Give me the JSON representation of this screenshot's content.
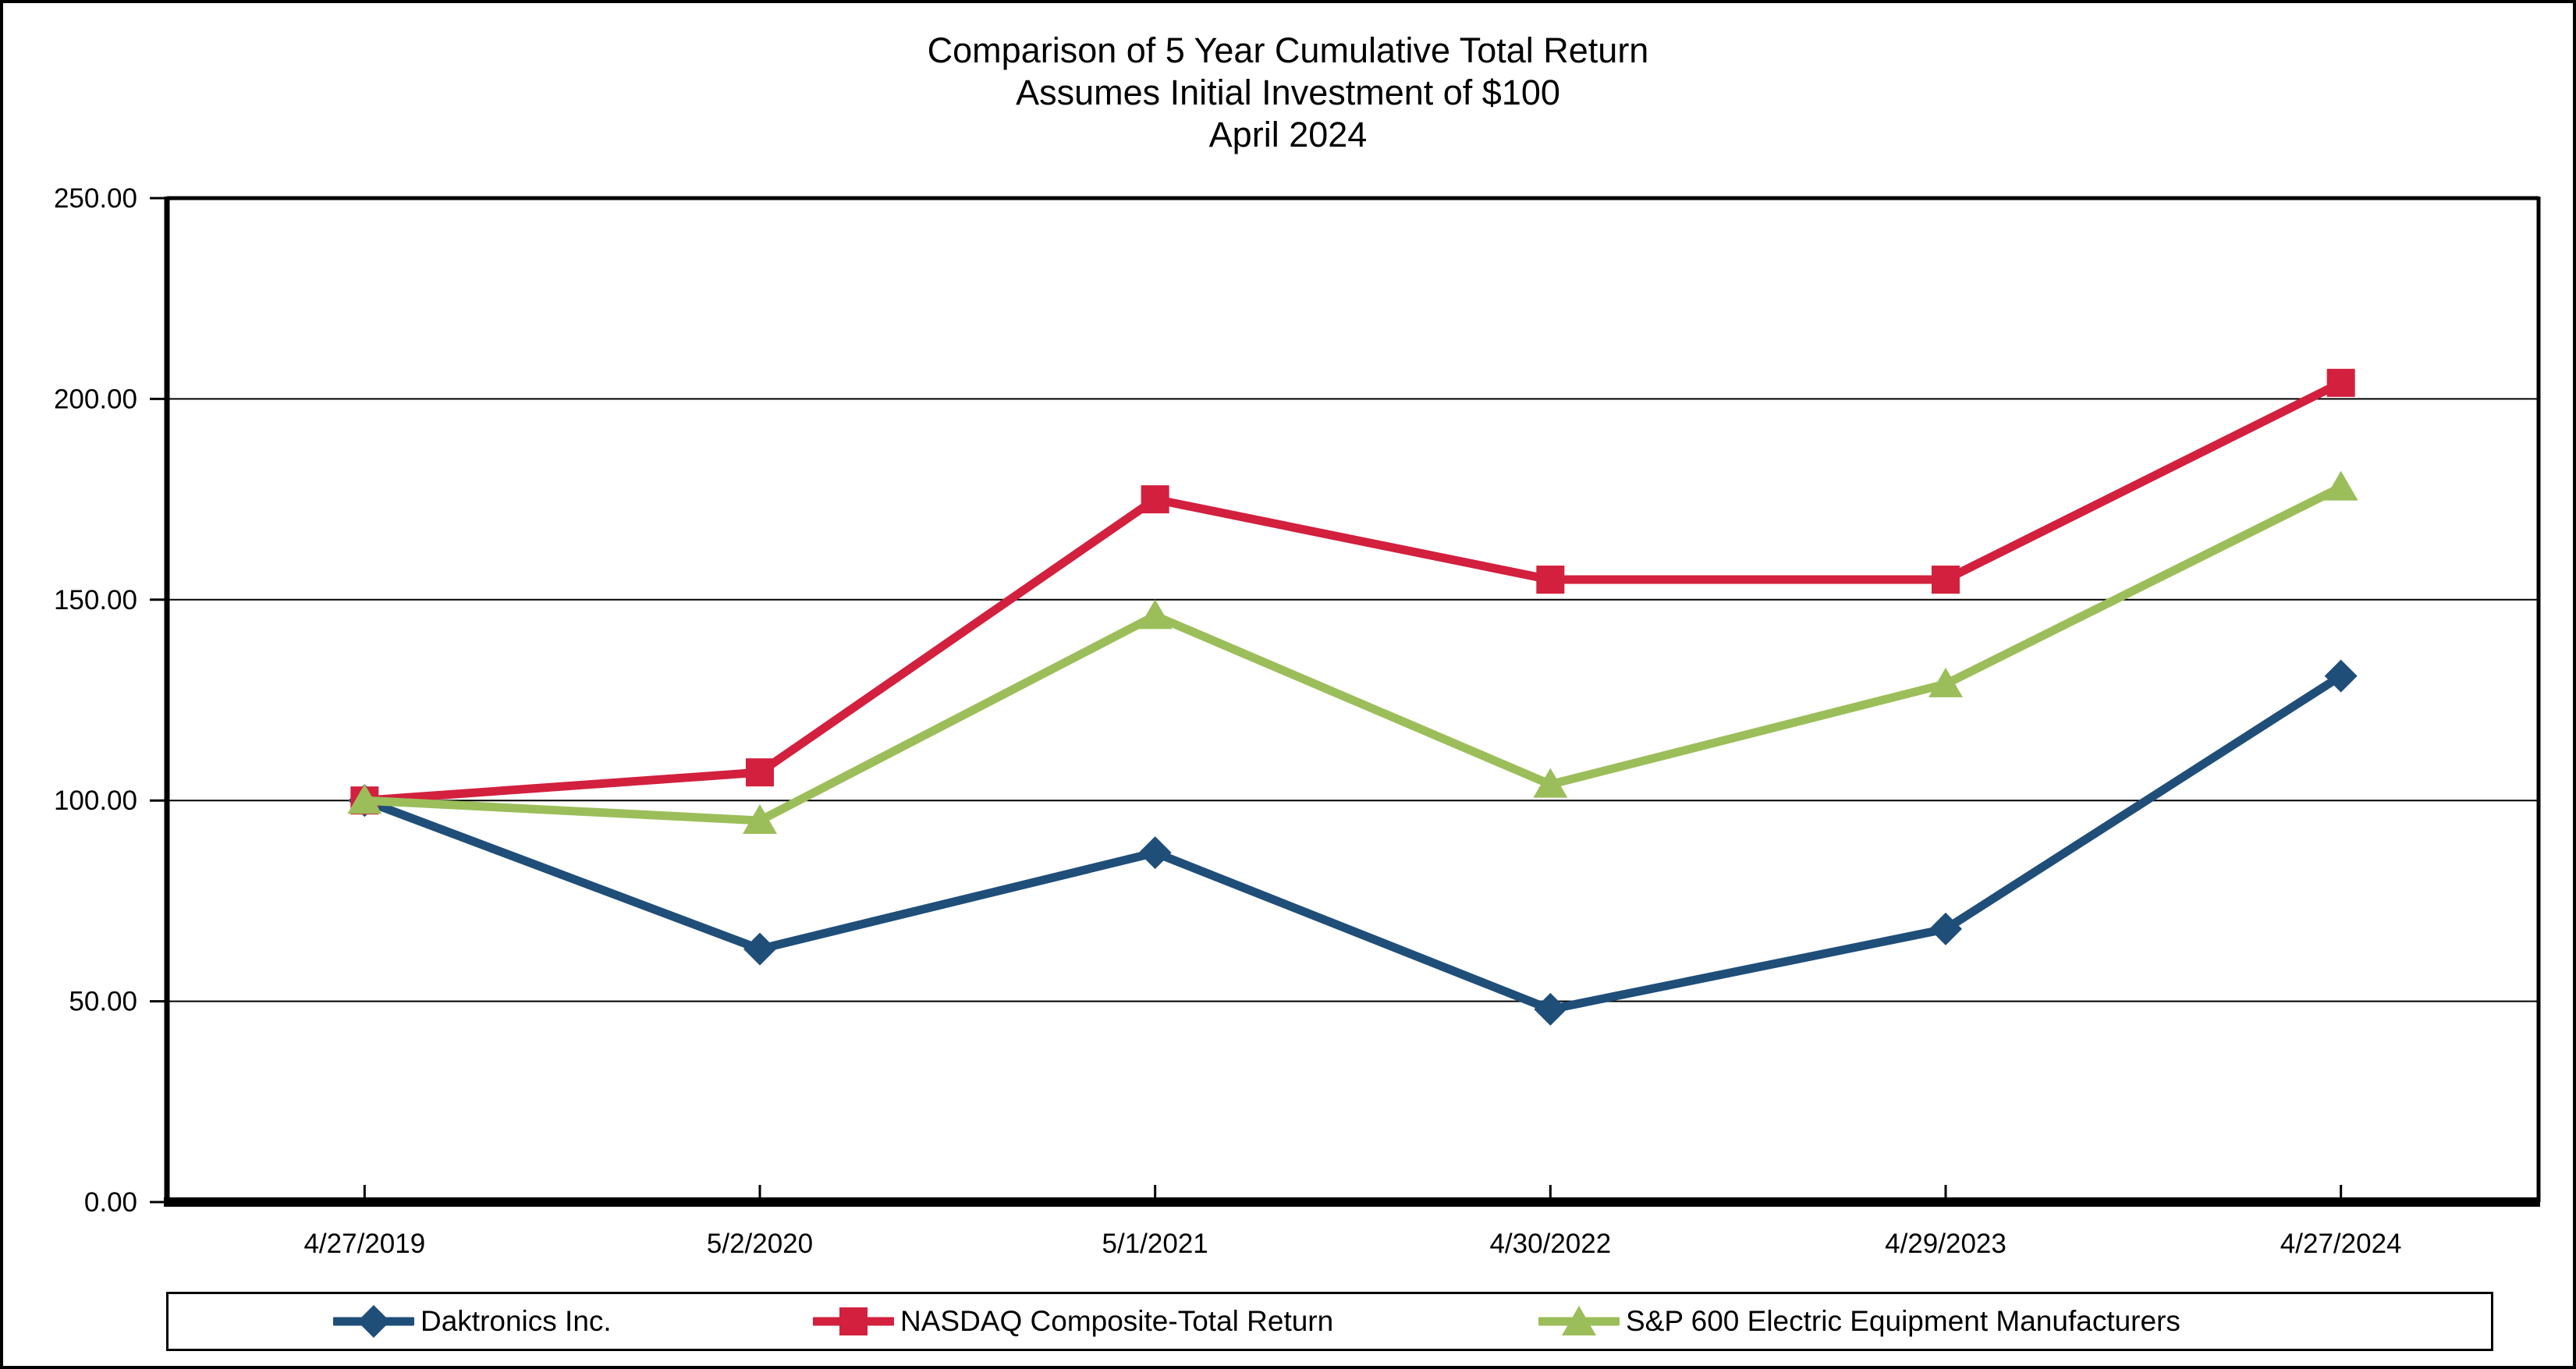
{
  "title": {
    "line1": "Comparison of 5 Year Cumulative Total Return",
    "line2": "Assumes Initial Investment of $100",
    "line3": "April 2024"
  },
  "chart_data": {
    "type": "line",
    "categories": [
      "4/27/2019",
      "5/2/2020",
      "5/1/2021",
      "4/30/2022",
      "4/29/2023",
      "4/27/2024"
    ],
    "series": [
      {
        "name": "Daktronics Inc.",
        "color": "#1F4E79",
        "marker": "diamond",
        "values": [
          100.0,
          63.0,
          87.0,
          48.0,
          68.0,
          131.0
        ]
      },
      {
        "name": "NASDAQ Composite-Total Return",
        "color": "#D2203E",
        "marker": "square",
        "values": [
          100.0,
          107.0,
          175.0,
          155.0,
          155.0,
          204.0
        ]
      },
      {
        "name": "S&P 600 Electric Equipment Manufacturers",
        "color": "#9CBE5A",
        "marker": "triangle",
        "values": [
          100.0,
          95.0,
          146.0,
          104.0,
          129.0,
          178.0
        ]
      }
    ],
    "ylim": [
      0,
      250
    ],
    "ytick_step": 50,
    "ytick_labels": [
      "0.00",
      "50.00",
      "100.00",
      "150.00",
      "200.00",
      "250.00"
    ],
    "grid": true,
    "legend_position": "bottom",
    "axis_color": "#000000",
    "gridline_color": "#000000"
  }
}
